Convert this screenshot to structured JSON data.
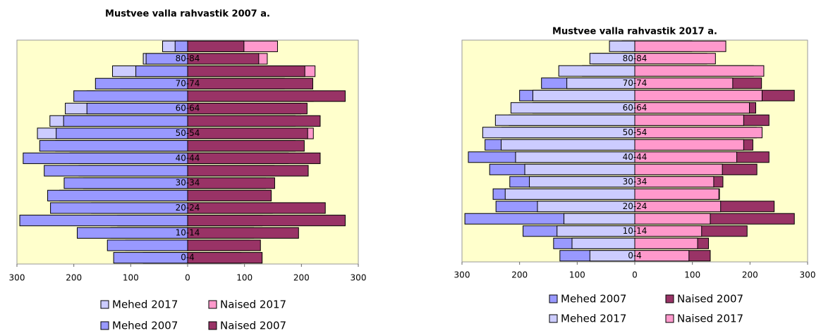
{
  "chart_data": [
    {
      "type": "pyramid",
      "title": "Mustvee valla rahvastik 2007 a.",
      "categories": [
        "0-4",
        null,
        "10-14",
        null,
        "20-24",
        null,
        "30-34",
        null,
        "40-44",
        null,
        "50-54",
        null,
        "60-64",
        null,
        "70-74",
        null,
        "80-84",
        null
      ],
      "series": [
        {
          "name": "Mehed 2017",
          "color": "#ccccff",
          "values": [
            -78,
            -109,
            -135,
            -123,
            -169,
            -225,
            -183,
            -191,
            -207,
            -232,
            -264,
            -242,
            -215,
            -177,
            -118,
            -132,
            -78,
            -44
          ]
        },
        {
          "name": "Naised 2017",
          "color": "#ff99cc",
          "values": [
            94,
            109,
            116,
            131,
            149,
            146,
            137,
            152,
            177,
            189,
            221,
            189,
            199,
            221,
            170,
            224,
            140,
            158
          ]
        },
        {
          "name": "Mehed 2007",
          "color": "#9999ff",
          "values": [
            -130,
            -141,
            -194,
            -295,
            -241,
            -246,
            -217,
            -252,
            -289,
            -260,
            -231,
            -218,
            -177,
            -200,
            -162,
            -91,
            -73,
            -22
          ]
        },
        {
          "name": "Naised 2007",
          "color": "#993366",
          "values": [
            131,
            128,
            195,
            277,
            242,
            147,
            153,
            212,
            233,
            205,
            211,
            233,
            210,
            277,
            220,
            206,
            125,
            99
          ]
        }
      ],
      "xlim": [
        -300,
        300
      ],
      "xticks": [
        {
          "value": -300,
          "label": "300"
        },
        {
          "value": -200,
          "label": "200"
        },
        {
          "value": -100,
          "label": "100"
        },
        0,
        100,
        200,
        300
      ],
      "plot_background": "#ffffcc"
    },
    {
      "type": "pyramid",
      "title": "Mustvee valla rahvastik 2017 a.",
      "categories": [
        "0-4",
        null,
        "10-14",
        null,
        "20-24",
        null,
        "30-34",
        null,
        "40-44",
        null,
        "50-54",
        null,
        "60-64",
        null,
        "70-74",
        null,
        "80-84",
        null
      ],
      "series": [
        {
          "name": "Mehed 2007",
          "color": "#9999ff",
          "values": [
            -130,
            -141,
            -194,
            -295,
            -241,
            -246,
            -217,
            -252,
            -289,
            -260,
            -231,
            -218,
            -177,
            -200,
            -162,
            -91,
            -73,
            -22
          ]
        },
        {
          "name": "Naised 2007",
          "color": "#993366",
          "values": [
            131,
            128,
            195,
            277,
            242,
            147,
            153,
            212,
            233,
            205,
            211,
            233,
            210,
            277,
            220,
            206,
            125,
            99
          ]
        },
        {
          "name": "Mehed 2017",
          "color": "#ccccff",
          "values": [
            -78,
            -109,
            -135,
            -123,
            -169,
            -225,
            -183,
            -191,
            -207,
            -232,
            -264,
            -242,
            -215,
            -177,
            -118,
            -132,
            -78,
            -44
          ]
        },
        {
          "name": "Naised 2017",
          "color": "#ff99cc",
          "values": [
            94,
            109,
            116,
            131,
            149,
            146,
            137,
            152,
            177,
            189,
            221,
            189,
            199,
            221,
            170,
            224,
            140,
            158
          ]
        }
      ],
      "xlim": [
        -300,
        300
      ],
      "xticks": [
        {
          "value": -300,
          "label": "300"
        },
        {
          "value": -200,
          "label": "200"
        },
        {
          "value": -100,
          "label": "100"
        },
        0,
        100,
        200,
        300
      ],
      "plot_background": "#ffffcc"
    }
  ]
}
